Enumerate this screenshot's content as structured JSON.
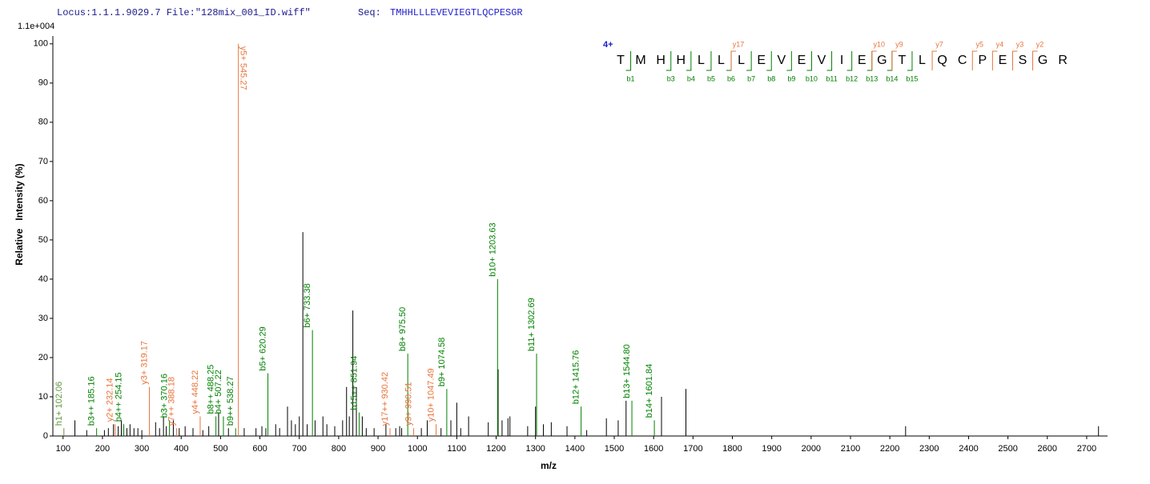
{
  "chart_data": {
    "type": "stem",
    "locus": "Locus:1.1.1.9029.7 File:\"128mix_001_ID.wiff\"",
    "seq_label": "Seq:",
    "sequence": "TMHHLLLEVEVIEGTLQCPESGR",
    "scale_label": "1.1e+004",
    "xlabel": "m/z",
    "ylabel": "Relative   Intensity (%)",
    "xlim": [
      74,
      2753
    ],
    "ylim": [
      0,
      102
    ],
    "xticks": [
      100,
      200,
      300,
      400,
      500,
      600,
      700,
      800,
      900,
      1000,
      1100,
      1200,
      1300,
      1400,
      1500,
      1600,
      1700,
      1800,
      1900,
      2000,
      2100,
      2200,
      2300,
      2400,
      2500,
      2600,
      2700
    ],
    "yticks": [
      0,
      10,
      20,
      30,
      40,
      50,
      60,
      70,
      80,
      90,
      100
    ],
    "series": [
      {
        "color": "#000000",
        "x": [
          130,
          160,
          205,
          215,
          228,
          240,
          248,
          262,
          270,
          280,
          290,
          300,
          335,
          345,
          355,
          362,
          380,
          395,
          410,
          430,
          455,
          470,
          495,
          520,
          560,
          590,
          605,
          615,
          640,
          650,
          670,
          680,
          690,
          700,
          709,
          720,
          740,
          760,
          770,
          790,
          810,
          820,
          827,
          836,
          845,
          860,
          870,
          890,
          920,
          945,
          955,
          960,
          1010,
          1025,
          1060,
          1085,
          1100,
          1110,
          1130,
          1180,
          1205,
          1215,
          1230,
          1235,
          1280,
          1300,
          1320,
          1340,
          1380,
          1430,
          1480,
          1510,
          1530,
          1620,
          1682,
          2240,
          2730
        ],
        "values": [
          4,
          1.5,
          1.5,
          2,
          3,
          2.5,
          4,
          2,
          3,
          2,
          2,
          1.5,
          3.5,
          2,
          5,
          2.5,
          4,
          2,
          2.5,
          2,
          1.5,
          2.5,
          6,
          2,
          2,
          2,
          2.5,
          2,
          3,
          2,
          7.5,
          4,
          3,
          5,
          52,
          3,
          4,
          5,
          3,
          2.5,
          4,
          12.5,
          5,
          32,
          12.5,
          5,
          2,
          2,
          3,
          2,
          2.5,
          2,
          2,
          4,
          2,
          4,
          8.5,
          2,
          5,
          3.5,
          17,
          4,
          4.5,
          5,
          2.5,
          7.5,
          3,
          3.5,
          2.5,
          1.5,
          4.5,
          4,
          9,
          10,
          12,
          2.5,
          2.5
        ]
      },
      {
        "color": "#5f9a3a",
        "x": [
          102.06
        ],
        "values": [
          2
        ],
        "labels": [
          "h1+ 102.06"
        ]
      },
      {
        "color": "#008000",
        "x": [
          185.16,
          254.15,
          370.16,
          488.25,
          507.22,
          538.27,
          620.29,
          733.38,
          851.94,
          975.5,
          1074.58,
          1203.63,
          1302.69,
          1415.76,
          1544.8,
          1601.84
        ],
        "values": [
          2,
          3,
          4,
          5,
          5,
          2,
          16,
          27,
          6,
          21,
          12,
          40,
          21,
          7.5,
          9,
          4
        ],
        "labels": [
          "b3++ 185.16",
          "b4++ 254.15",
          "b3+ 370.16",
          "b8++ 488.25",
          "b4+ 507.22",
          "b9++ 538.27",
          "b5+ 620.29",
          "b6+ 733.38",
          "b15++ 851.94",
          "b8+ 975.50",
          "b9+ 1074.58",
          "b10+ 1203.63",
          "b11+ 1302.69",
          "b12+ 1415.76",
          "b13+ 1544.80",
          "b14+ 1601.84"
        ]
      },
      {
        "color": "#e8743b",
        "x": [
          232.14,
          319.17,
          388.18,
          448.22,
          545.27,
          930.42,
          990.51,
          1047.49
        ],
        "values": [
          3,
          12.5,
          2,
          5,
          100,
          2,
          2,
          3
        ],
        "labels": [
          "y2+ 232.14",
          "y3+ 319.17",
          "y7++ 388.18",
          "y4+ 448.22",
          "y5+ 545.27",
          "y17++ 930.42",
          "y9+ 990.51",
          "y10+ 1047.49"
        ]
      }
    ],
    "sequence_map": {
      "charge": "4+",
      "residues": [
        "T",
        "M",
        "H",
        "H",
        "L",
        "L",
        "L",
        "E",
        "V",
        "E",
        "V",
        "I",
        "E",
        "G",
        "T",
        "L",
        "Q",
        "C",
        "P",
        "E",
        "S",
        "G",
        "R"
      ],
      "b_labels": [
        "b1",
        null,
        "b3",
        "b4",
        "b5",
        "b6",
        "b7",
        "b8",
        "b9",
        "b10",
        "b11",
        "b12",
        "b13",
        "b14",
        "b15",
        null,
        null,
        null,
        null,
        null,
        null,
        null,
        null
      ],
      "y_labels": [
        null,
        null,
        null,
        null,
        null,
        null,
        "y17",
        null,
        null,
        null,
        null,
        null,
        null,
        "y10",
        "y9",
        null,
        "y7",
        null,
        "y5",
        "y4",
        "y3",
        "y2",
        null
      ]
    }
  }
}
